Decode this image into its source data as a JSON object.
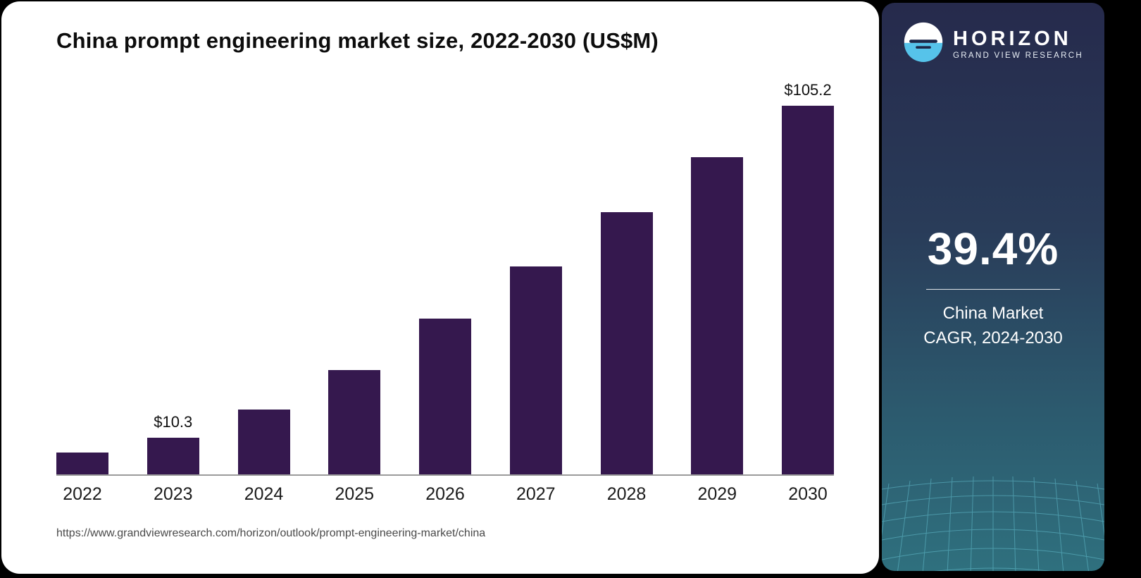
{
  "chart_data": {
    "type": "bar",
    "title": "China prompt engineering market size, 2022-2030 (US$M)",
    "categories": [
      "2022",
      "2023",
      "2024",
      "2025",
      "2026",
      "2027",
      "2028",
      "2029",
      "2030"
    ],
    "values": [
      6.1,
      10.3,
      18.1,
      29.0,
      43.4,
      57.9,
      73.0,
      88.3,
      105.2
    ],
    "value_labels": [
      "",
      "$10.3",
      "",
      "",
      "",
      "",
      "",
      "",
      "$105.2"
    ],
    "xlabel": "",
    "ylabel": "",
    "ylim": [
      0,
      110
    ],
    "grid": false,
    "legend": false,
    "bar_color": "#35184e"
  },
  "source": {
    "url": "https://www.grandviewresearch.com/horizon/outlook/prompt-engineering-market/china"
  },
  "sidebar": {
    "brand": "HORIZON",
    "brand_sub": "GRAND VIEW RESEARCH",
    "stat_value": "39.4%",
    "stat_label_line1": "China Market",
    "stat_label_line2": "CAGR, 2024-2030",
    "gradient_top": "#262a4c",
    "gradient_bottom": "#2f707e",
    "logo_blue": "#56c3ea"
  }
}
